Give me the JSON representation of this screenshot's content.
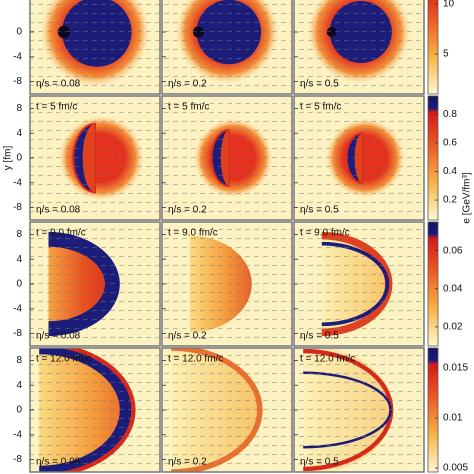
{
  "chart_data": [
    {
      "type": "heatmap",
      "labels": [
        "η/s = 0.08",
        "η/s = 0.2",
        "η/s = 0.5"
      ],
      "ylim": [
        -10,
        10
      ],
      "yticks": [
        0,
        -4,
        -8
      ],
      "clim": [
        1,
        13.4
      ],
      "cticks": [
        10,
        5
      ]
    },
    {
      "type": "heatmap",
      "time": "t = 5 fm/c",
      "labels": [
        "η/s = 0.08",
        "η/s = 0.2",
        "η/s = 0.5"
      ],
      "ylim": [
        -10,
        10
      ],
      "yticks": [
        8,
        4,
        0,
        -4,
        -8
      ],
      "clim": [
        0.06,
        0.93
      ],
      "cticks": [
        0.8,
        0.6,
        0.4,
        0.2
      ],
      "ylabel": "y [fm]",
      "clabel": "e [GeV/fm³]"
    },
    {
      "type": "heatmap",
      "time": "t = 9.0 fm/c",
      "labels": [
        "η/s = 0.08",
        "η/s = 0.2",
        "η/s = 0.5"
      ],
      "ylim": [
        -10,
        10
      ],
      "yticks": [
        8,
        4,
        0,
        -4,
        -8
      ],
      "clim": [
        0.01,
        0.075
      ],
      "cticks": [
        0.06,
        0.04,
        0.02
      ]
    },
    {
      "type": "heatmap",
      "time": "t = 12.0 fm/c",
      "labels": [
        "η/s = 0.08",
        "η/s = 0.2",
        "η/s = 0.5"
      ],
      "ylim": [
        -10,
        10
      ],
      "yticks": [
        8,
        4,
        0,
        -4,
        -8
      ],
      "clim": [
        0.0046,
        0.017
      ],
      "cticks": [
        0.015,
        0.01,
        0.005
      ]
    }
  ]
}
